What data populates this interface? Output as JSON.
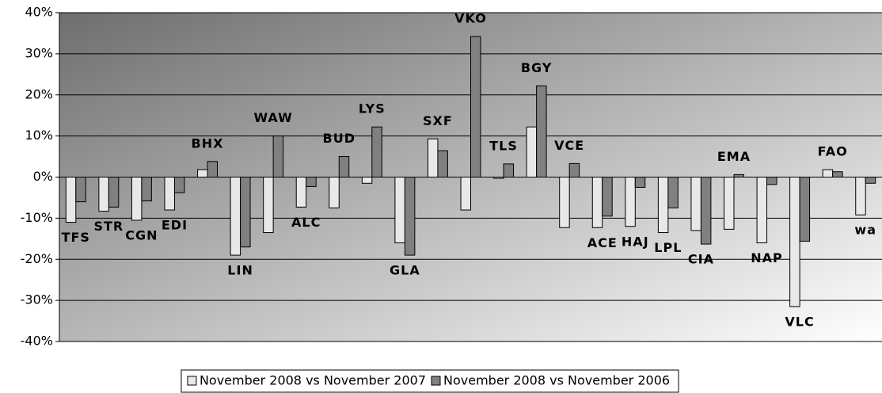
{
  "chart_data": {
    "type": "bar",
    "categories": [
      "TFS",
      "STR",
      "CGN",
      "EDI",
      "BHX",
      "LIN",
      "WAW",
      "ALC",
      "BUD",
      "LYS",
      "GLA",
      "SXF",
      "VKO",
      "TLS",
      "BGY",
      "VCE",
      "ACE",
      "HAJ",
      "LPL",
      "CIA",
      "EMA",
      "NAP",
      "VLC",
      "FAO",
      "wa"
    ],
    "series": [
      {
        "name": "November 2008 vs November 2007",
        "color": "#e8e8e8",
        "values": [
          -11,
          -8.3,
          -10.5,
          -8,
          1.8,
          -19,
          -13.5,
          -7.3,
          -7.5,
          -1.5,
          -16,
          9.3,
          -8,
          -0.3,
          12.2,
          -12.3,
          -12.3,
          -12,
          -13.5,
          -13,
          -12.7,
          -16,
          -31.5,
          1.8,
          -9.2
        ]
      },
      {
        "name": "November 2008 vs November 2006",
        "color": "#808080",
        "values": [
          -6,
          -7.3,
          -5.8,
          -3.8,
          3.8,
          -17,
          10,
          -2.3,
          5,
          12.2,
          -19,
          6.4,
          34.2,
          3.2,
          22.2,
          3.3,
          -9.5,
          -2.5,
          -7.5,
          -16.3,
          0.6,
          -1.8,
          -15.6,
          1.3,
          -1.5
        ]
      }
    ],
    "ylim": [
      -40,
      40
    ],
    "yticks": [
      {
        "value": -40,
        "label": "-40%"
      },
      {
        "value": -30,
        "label": "-30%"
      },
      {
        "value": -20,
        "label": "-20%"
      },
      {
        "value": -10,
        "label": "-10%"
      },
      {
        "value": 0,
        "label": "0%"
      },
      {
        "value": 10,
        "label": "10%"
      },
      {
        "value": 20,
        "label": "20%"
      },
      {
        "value": 30,
        "label": "30%"
      },
      {
        "value": 40,
        "label": "40%"
      }
    ],
    "grid": true,
    "legend": "bottom"
  }
}
